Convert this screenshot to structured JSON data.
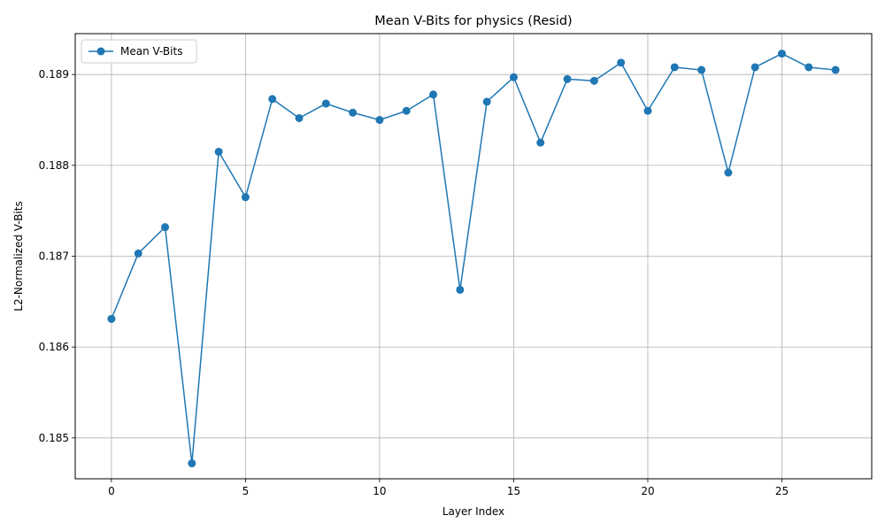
{
  "chart_data": {
    "type": "line",
    "title": "Mean V-Bits for physics (Resid)",
    "xlabel": "Layer Index",
    "ylabel": "L2-Normalized V-Bits",
    "xlim": [
      -1.35,
      28.35
    ],
    "ylim": [
      0.18455,
      0.18945
    ],
    "x_ticks": [
      0,
      5,
      10,
      15,
      20,
      25
    ],
    "y_ticks": [
      0.185,
      0.186,
      0.187,
      0.188,
      0.189
    ],
    "y_tick_labels": [
      "0.185",
      "0.186",
      "0.187",
      "0.188",
      "0.189"
    ],
    "grid": true,
    "legend_position": "top-left",
    "series": [
      {
        "name": "Mean V-Bits",
        "color": "#1f77b4",
        "marker": "circle",
        "x": [
          0,
          1,
          2,
          3,
          4,
          5,
          6,
          7,
          8,
          9,
          10,
          11,
          12,
          13,
          14,
          15,
          16,
          17,
          18,
          19,
          20,
          21,
          22,
          23,
          24,
          25,
          26,
          27
        ],
        "y": [
          0.18631,
          0.18703,
          0.18732,
          0.18472,
          0.18815,
          0.18765,
          0.18873,
          0.18852,
          0.18868,
          0.18858,
          0.1885,
          0.1886,
          0.18878,
          0.18663,
          0.1887,
          0.18897,
          0.18825,
          0.18895,
          0.18893,
          0.18913,
          0.1886,
          0.18908,
          0.18905,
          0.18792,
          0.18908,
          0.18923,
          0.18908,
          0.18905
        ]
      }
    ]
  }
}
